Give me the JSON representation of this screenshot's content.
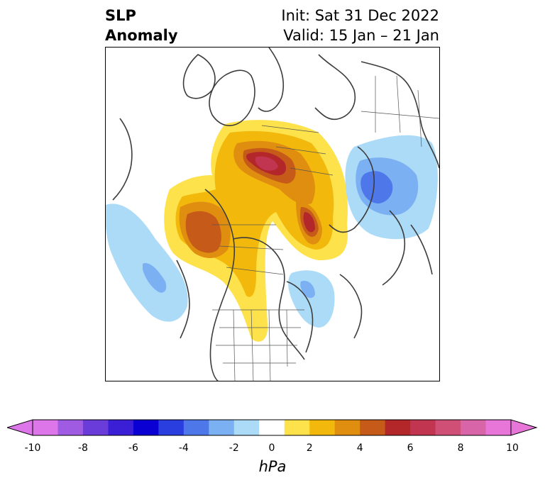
{
  "title": {
    "left_line1": "SLP",
    "left_line2": "Anomaly",
    "right_line1": "Init: Sat 31 Dec 2022",
    "right_line2": "Valid: 15 Jan – 21 Jan"
  },
  "colorbar": {
    "units": "hPa",
    "tick_labels": [
      "-10",
      "-8",
      "-6",
      "-4",
      "-2",
      "0",
      "2",
      "4",
      "6",
      "8",
      "10"
    ],
    "levels": [
      -10,
      -9,
      -8,
      -7,
      -6,
      -5,
      -4,
      -3,
      -2,
      -1,
      1,
      2,
      3,
      4,
      5,
      6,
      7,
      8,
      9,
      10
    ],
    "colors": [
      "#dd76e8",
      "#a05be3",
      "#6a3ddb",
      "#3b1fd7",
      "#0a00d4",
      "#2a3ddf",
      "#4e78ea",
      "#7bb1f3",
      "#acdbf8",
      "#ffffff",
      "#fde24b",
      "#f2b90c",
      "#e08e10",
      "#c65a19",
      "#b3262a",
      "#c13550",
      "#cf4f77",
      "#d765a8",
      "#e876d8"
    ],
    "extend": "both"
  },
  "map": {
    "projection": "north-polar-stereographic",
    "coastline_color": "#3c3c3c",
    "border_color": "#555555"
  }
}
